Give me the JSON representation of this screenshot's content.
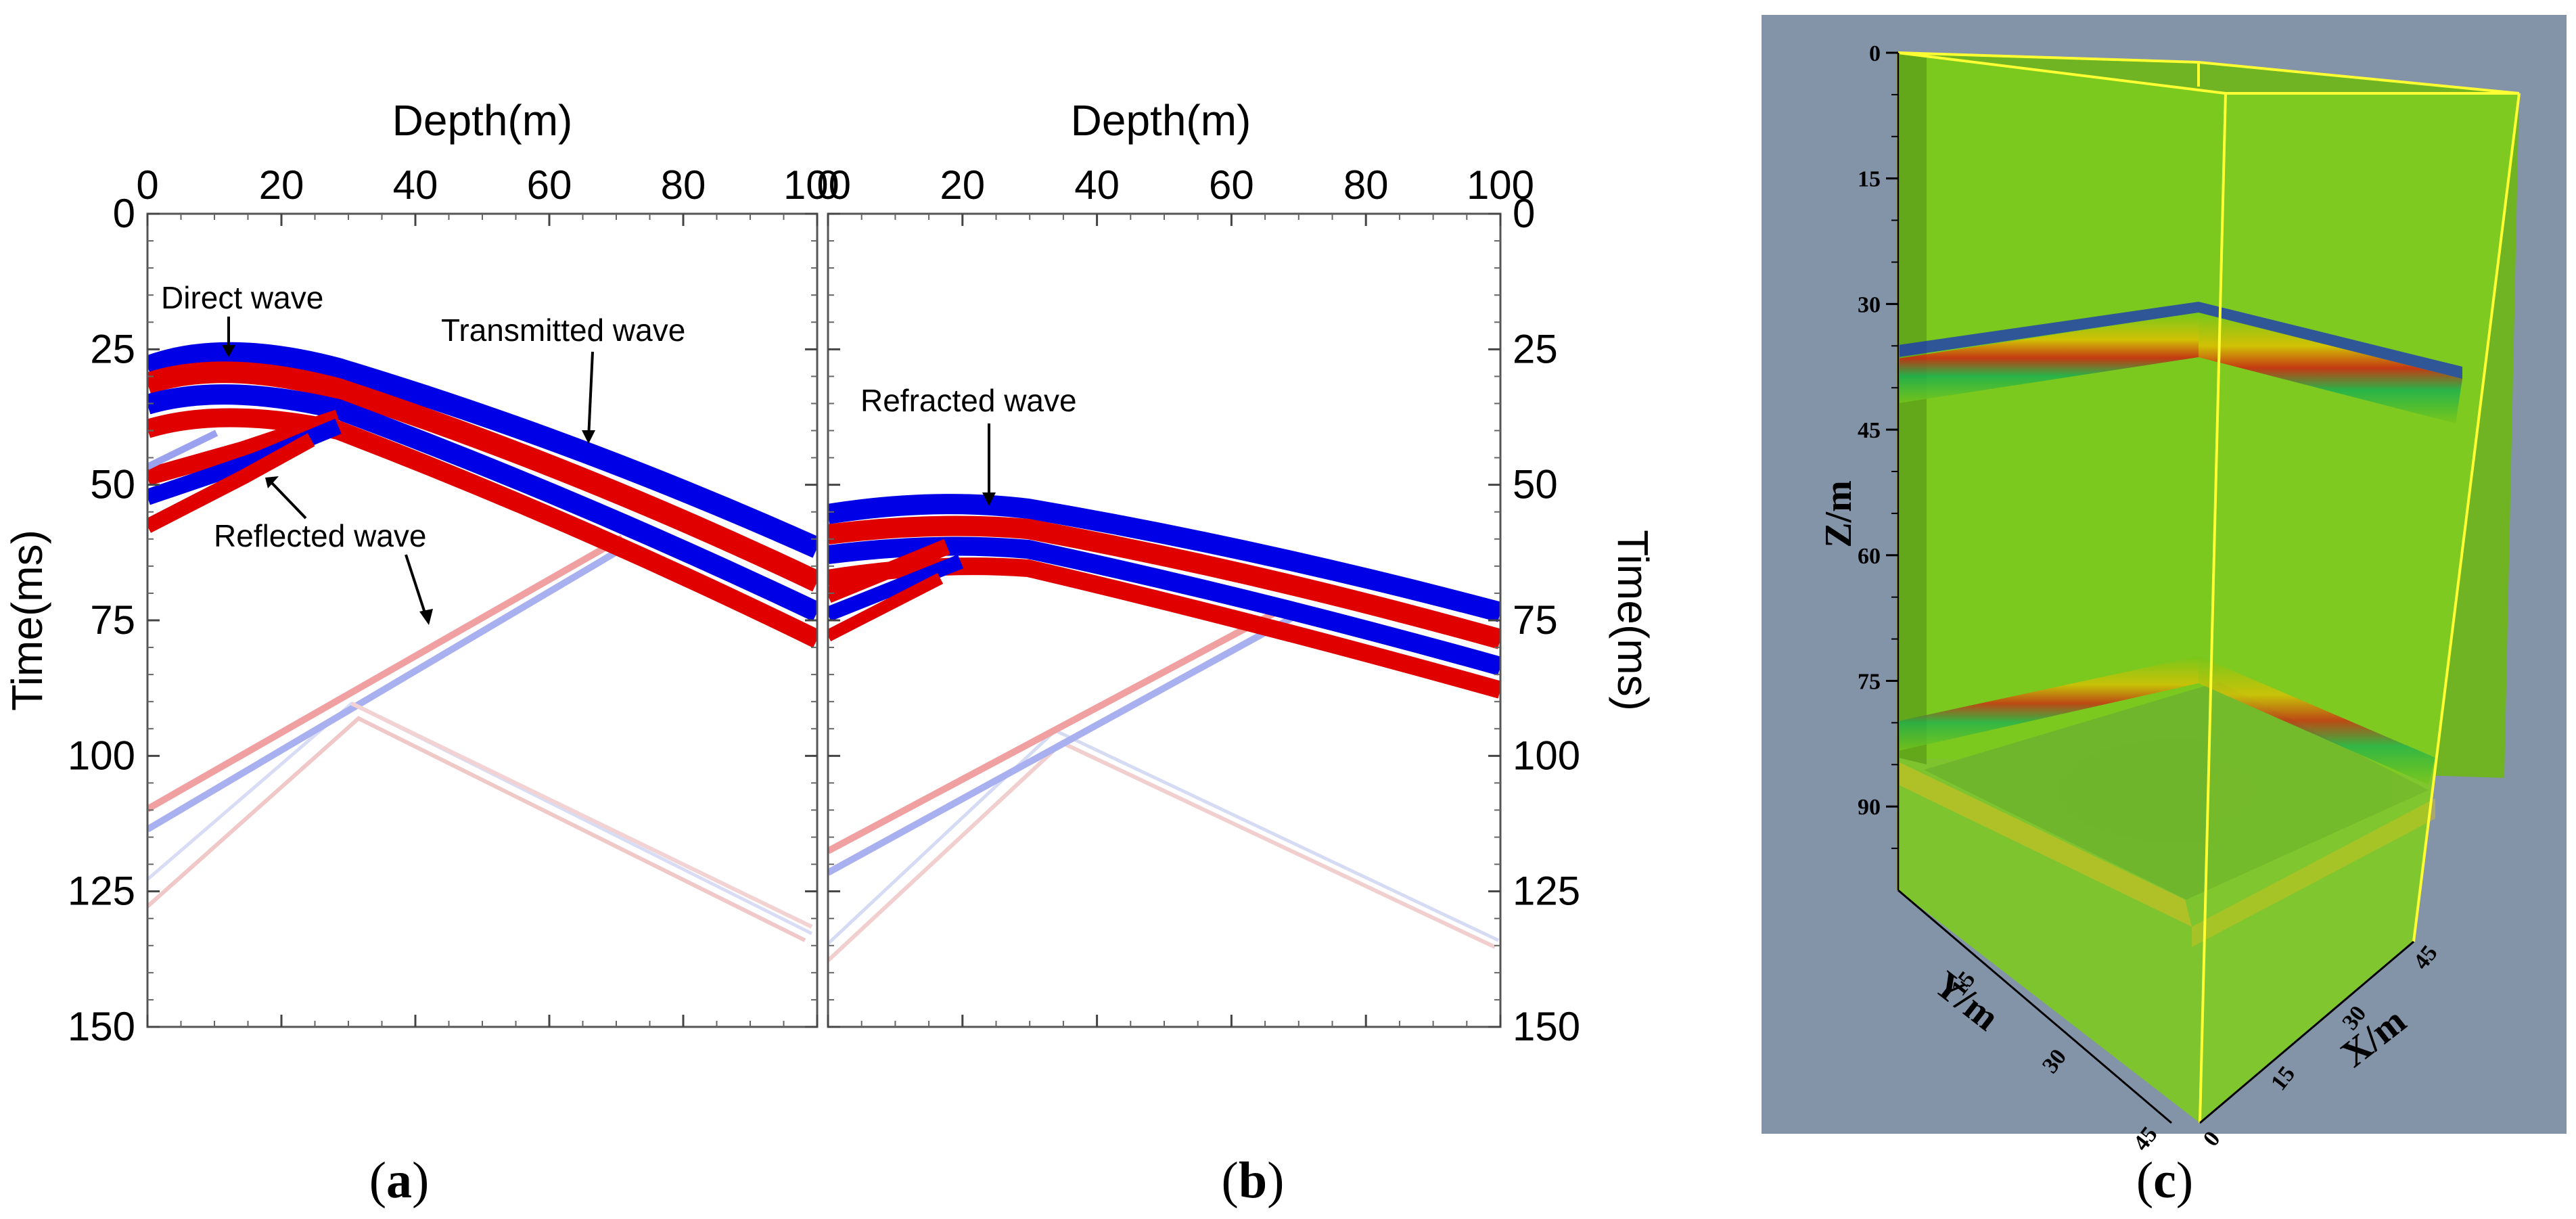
{
  "chart_data": [
    {
      "type": "heatmap",
      "panel": "a",
      "xlabel": "Depth(m)",
      "ylabel": "Time(ms)",
      "xlim": [
        0,
        100
      ],
      "ylim": [
        0,
        150
      ],
      "x_ticks": [
        "0",
        "20",
        "40",
        "60",
        "80",
        "100"
      ],
      "y_ticks": [
        "0",
        "25",
        "50",
        "75",
        "100",
        "125",
        "150"
      ],
      "colors": {
        "positive": "#e00000",
        "negative": "#0000e6",
        "zero": "#ffffff"
      },
      "annotations": [
        "Direct wave",
        "Transmitted wave",
        "Reflected wave",
        "Reflected wave"
      ],
      "caption": "a"
    },
    {
      "type": "heatmap",
      "panel": "b",
      "xlabel": "Depth(m)",
      "ylabel": "Time(ms)",
      "xlim": [
        0,
        100
      ],
      "ylim": [
        0,
        150
      ],
      "x_ticks": [
        "0",
        "20",
        "40",
        "60",
        "80",
        "100"
      ],
      "y_ticks": [
        "0",
        "25",
        "50",
        "75",
        "100",
        "125",
        "150"
      ],
      "colors": {
        "positive": "#e00000",
        "negative": "#0000e6",
        "zero": "#ffffff"
      },
      "annotations": [
        "Refracted wave"
      ],
      "caption": "b"
    },
    {
      "type": "heatmap",
      "panel": "c",
      "zlabel": "Z/m",
      "ylabel": "Y/m",
      "xlabel": "X/m",
      "z_ticks": [
        "0",
        "15",
        "30",
        "45",
        "60",
        "75",
        "90"
      ],
      "y_ticks": [
        "15",
        "30",
        "45"
      ],
      "x_ticks": [
        "0",
        "15",
        "30",
        "45"
      ],
      "colors": {
        "background": "#8393a8",
        "volume": "#79c81c",
        "edge": "#ffff33"
      },
      "caption": "c"
    }
  ]
}
